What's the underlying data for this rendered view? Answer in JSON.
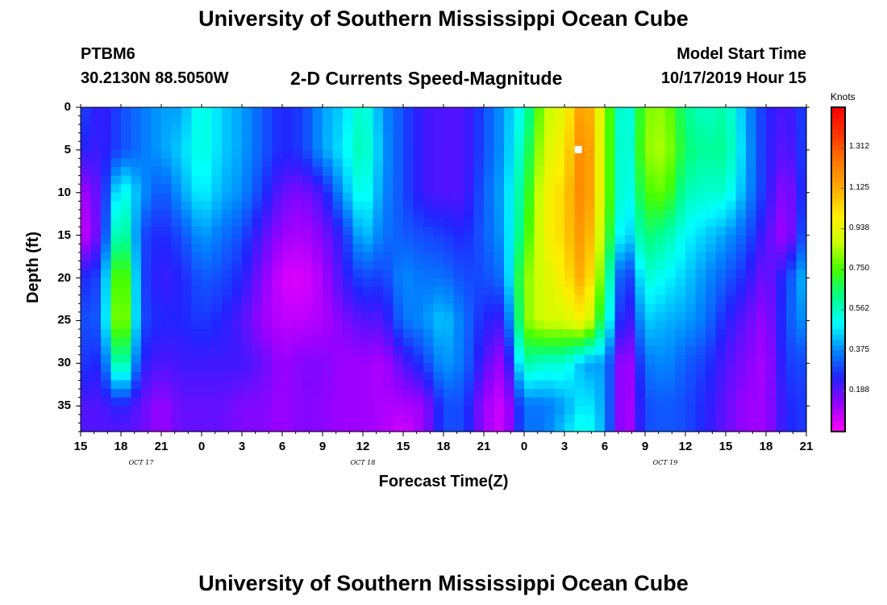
{
  "header": {
    "title_top": "University of Southern Mississippi Ocean Cube",
    "title_bottom": "University of Southern Mississippi Ocean Cube",
    "station_id": "PTBM6",
    "station_coords": "30.2130N 88.5050W",
    "chart_title": "2-D Currents Speed-Magnitude",
    "model_label": "Model Start Time",
    "model_time": "10/17/2019 Hour 15"
  },
  "colors": {
    "ramp": [
      "#ff00ff",
      "#9900ff",
      "#2222ff",
      "#0088ff",
      "#00ffff",
      "#00ff88",
      "#44ff00",
      "#ccff00",
      "#ffee00",
      "#ffaa00",
      "#ff7700",
      "#ff3300",
      "#ff0000"
    ]
  },
  "chart_data": {
    "type": "heatmap",
    "title": "2-D Currents Speed-Magnitude",
    "xlabel": "Forecast Time(Z)",
    "ylabel": "Depth (ft)",
    "units": "Knots",
    "x_range_hours": [
      0,
      54
    ],
    "x_ticks": [
      {
        "h": 0,
        "label": "15"
      },
      {
        "h": 3,
        "label": "18"
      },
      {
        "h": 6,
        "label": "21"
      },
      {
        "h": 9,
        "label": "0"
      },
      {
        "h": 12,
        "label": "3"
      },
      {
        "h": 15,
        "label": "6"
      },
      {
        "h": 18,
        "label": "9"
      },
      {
        "h": 21,
        "label": "12"
      },
      {
        "h": 24,
        "label": "15"
      },
      {
        "h": 27,
        "label": "18"
      },
      {
        "h": 30,
        "label": "21"
      },
      {
        "h": 33,
        "label": "0"
      },
      {
        "h": 36,
        "label": "3"
      },
      {
        "h": 39,
        "label": "6"
      },
      {
        "h": 42,
        "label": "9"
      },
      {
        "h": 45,
        "label": "12"
      },
      {
        "h": 48,
        "label": "15"
      },
      {
        "h": 51,
        "label": "18"
      },
      {
        "h": 54,
        "label": "21"
      }
    ],
    "date_labels": [
      {
        "h": 4.5,
        "label": "OCT 17"
      },
      {
        "h": 21,
        "label": "OCT 18"
      },
      {
        "h": 43.5,
        "label": "OCT 19"
      }
    ],
    "y_range_ft": [
      0,
      38
    ],
    "y_ticks": [
      {
        "v": 0,
        "label": "0"
      },
      {
        "v": 5,
        "label": "5"
      },
      {
        "v": 10,
        "label": "10"
      },
      {
        "v": 15,
        "label": "15"
      },
      {
        "v": 20,
        "label": "20"
      },
      {
        "v": 25,
        "label": "25"
      },
      {
        "v": 30,
        "label": "30"
      },
      {
        "v": 35,
        "label": "35"
      }
    ],
    "colorbar": {
      "min": 0,
      "max": 1.5,
      "tick_labels": [
        "0.188",
        "0.375",
        "0.562",
        "0.750",
        "0.938",
        "1.125",
        "1.312"
      ],
      "tick_values": [
        0.188,
        0.375,
        0.562,
        0.75,
        0.938,
        1.125,
        1.312
      ]
    },
    "depth_rows_ft": [
      0,
      5,
      10,
      15,
      20,
      25,
      30,
      35,
      38
    ],
    "time_cols_hours": [
      0,
      1.5,
      3,
      4.5,
      6,
      7.5,
      9,
      10.5,
      12,
      13.5,
      15,
      16.5,
      18,
      19.5,
      21,
      22.5,
      24,
      25.5,
      27,
      28.5,
      30,
      31.5,
      33,
      34.5,
      36,
      37.5,
      39,
      40.5,
      42,
      43.5,
      45,
      46.5,
      48,
      49.5,
      51,
      52.5,
      54
    ],
    "speed_grid_knots": [
      [
        0.3,
        0.22,
        0.3,
        0.35,
        0.4,
        0.4,
        0.55,
        0.45,
        0.4,
        0.32,
        0.25,
        0.28,
        0.4,
        0.45,
        0.58,
        0.38,
        0.3,
        0.22,
        0.2,
        0.2,
        0.3,
        0.4,
        0.55,
        0.85,
        0.95,
        1.2,
        0.85,
        0.45,
        0.8,
        0.82,
        0.62,
        0.55,
        0.6,
        0.4,
        0.25,
        0.2,
        0.3
      ],
      [
        0.25,
        0.22,
        0.3,
        0.35,
        0.4,
        0.45,
        0.55,
        0.45,
        0.4,
        0.32,
        0.25,
        0.28,
        0.4,
        0.48,
        0.6,
        0.4,
        0.3,
        0.22,
        0.2,
        0.2,
        0.3,
        0.4,
        0.6,
        0.9,
        1.0,
        1.25,
        0.85,
        0.45,
        0.82,
        0.85,
        0.65,
        0.6,
        0.62,
        0.42,
        0.25,
        0.18,
        0.3
      ],
      [
        0.1,
        0.2,
        0.55,
        0.4,
        0.3,
        0.4,
        0.5,
        0.42,
        0.38,
        0.28,
        0.18,
        0.15,
        0.22,
        0.4,
        0.55,
        0.38,
        0.3,
        0.22,
        0.2,
        0.2,
        0.32,
        0.42,
        0.65,
        0.95,
        1.05,
        1.25,
        0.85,
        0.45,
        0.75,
        0.78,
        0.58,
        0.55,
        0.55,
        0.4,
        0.25,
        0.12,
        0.3
      ],
      [
        0.05,
        0.2,
        0.7,
        0.3,
        0.25,
        0.3,
        0.4,
        0.35,
        0.3,
        0.2,
        0.12,
        0.1,
        0.15,
        0.25,
        0.45,
        0.35,
        0.32,
        0.3,
        0.28,
        0.25,
        0.32,
        0.4,
        0.7,
        0.95,
        1.05,
        1.2,
        0.8,
        0.4,
        0.65,
        0.6,
        0.5,
        0.45,
        0.4,
        0.32,
        0.2,
        0.1,
        0.35
      ],
      [
        0.25,
        0.3,
        0.9,
        0.3,
        0.22,
        0.25,
        0.32,
        0.3,
        0.25,
        0.15,
        0.05,
        0.04,
        0.1,
        0.22,
        0.3,
        0.28,
        0.38,
        0.35,
        0.35,
        0.3,
        0.3,
        0.35,
        0.8,
        0.9,
        1.0,
        1.15,
        0.7,
        0.2,
        0.55,
        0.5,
        0.45,
        0.38,
        0.32,
        0.25,
        0.15,
        0.28,
        0.45
      ],
      [
        0.3,
        0.32,
        0.95,
        0.3,
        0.25,
        0.25,
        0.28,
        0.25,
        0.2,
        0.12,
        0.08,
        0.08,
        0.1,
        0.15,
        0.2,
        0.2,
        0.35,
        0.38,
        0.45,
        0.35,
        0.25,
        0.22,
        0.8,
        0.9,
        0.9,
        1.0,
        0.6,
        0.15,
        0.45,
        0.42,
        0.4,
        0.35,
        0.25,
        0.18,
        0.12,
        0.3,
        0.4
      ],
      [
        0.28,
        0.25,
        0.7,
        0.25,
        0.2,
        0.22,
        0.22,
        0.22,
        0.22,
        0.18,
        0.12,
        0.15,
        0.15,
        0.12,
        0.12,
        0.1,
        0.2,
        0.28,
        0.4,
        0.35,
        0.2,
        0.1,
        0.6,
        0.55,
        0.55,
        0.4,
        0.4,
        0.05,
        0.35,
        0.38,
        0.32,
        0.28,
        0.2,
        0.15,
        0.1,
        0.28,
        0.3
      ],
      [
        0.2,
        0.2,
        0.25,
        0.18,
        0.12,
        0.18,
        0.18,
        0.18,
        0.15,
        0.15,
        0.12,
        0.15,
        0.14,
        0.12,
        0.12,
        0.1,
        0.1,
        0.12,
        0.3,
        0.3,
        0.12,
        0.05,
        0.35,
        0.35,
        0.4,
        0.5,
        0.4,
        0.05,
        0.3,
        0.32,
        0.3,
        0.25,
        0.18,
        0.12,
        0.12,
        0.25,
        0.28
      ],
      [
        0.2,
        0.2,
        0.2,
        0.18,
        0.12,
        0.18,
        0.18,
        0.18,
        0.15,
        0.15,
        0.12,
        0.15,
        0.14,
        0.12,
        0.12,
        0.1,
        0.05,
        0.12,
        0.3,
        0.3,
        0.12,
        0.05,
        0.35,
        0.35,
        0.45,
        0.55,
        0.4,
        0.05,
        0.3,
        0.32,
        0.3,
        0.25,
        0.18,
        0.12,
        0.12,
        0.25,
        0.28
      ]
    ]
  }
}
